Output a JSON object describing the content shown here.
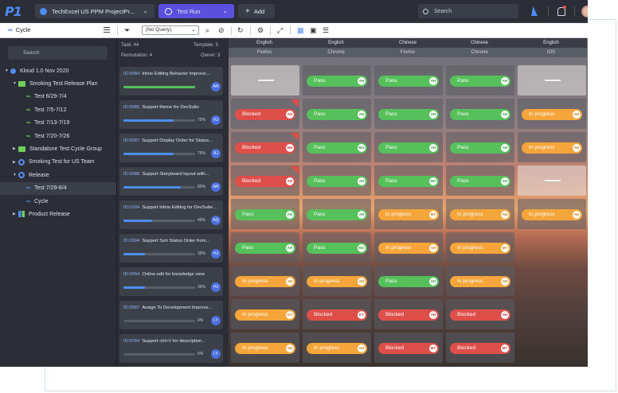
{
  "topbar": {
    "logo": "P1",
    "project": "TechExcel US PPM ProjectPr...",
    "active_tab": "Test Run",
    "add_label": "Add",
    "search_placeholder": "Search"
  },
  "toolbar": {
    "title": "Cycle",
    "query_value": "(No Query)"
  },
  "sidebar": {
    "search_placeholder": "Search",
    "items": [
      {
        "label": "Kloud 1.0 Nov 2020",
        "level": 0,
        "icon": "kloud-icon",
        "caret": "▼"
      },
      {
        "label": "Smoking Test Release Plan",
        "level": 1,
        "icon": "folder-icon",
        "caret": "▼"
      },
      {
        "label": "Test 6/29-7/4",
        "level": 2,
        "icon": "cycle-link-icon",
        "caret": ""
      },
      {
        "label": "Test 7/5-7/12",
        "level": 2,
        "icon": "cycle-link-icon",
        "caret": ""
      },
      {
        "label": "Test 7/13-7/19",
        "level": 2,
        "icon": "cycle-link-icon",
        "caret": ""
      },
      {
        "label": "Test 7/20-7/26",
        "level": 2,
        "icon": "cycle-link-icon",
        "caret": ""
      },
      {
        "label": "Standalone Test Cycle Group",
        "level": 1,
        "icon": "folder-icon",
        "caret": "▶"
      },
      {
        "label": "Smoking Test for US Team",
        "level": 1,
        "icon": "gear-icon",
        "caret": "▶"
      },
      {
        "label": "Release",
        "level": 1,
        "icon": "gear-icon",
        "caret": "▼"
      },
      {
        "label": "Test 7/29-8/4",
        "level": 2,
        "icon": "cycle-link-blue-icon",
        "caret": "",
        "selected": true
      },
      {
        "label": "Cycle",
        "level": 2,
        "icon": "cycle-link-blue-icon",
        "caret": ""
      },
      {
        "label": "Product Release",
        "level": 1,
        "icon": "grid-icon",
        "caret": "▶"
      }
    ]
  },
  "stats": {
    "task_label": "Task:",
    "task_value": "44",
    "template_label": "Template:",
    "template_value": "5",
    "permutation_label": "Permutation:",
    "permutation_value": "4",
    "owner_label": "Owner:",
    "owner_value": "3"
  },
  "cases": [
    {
      "id": "ID:0084",
      "title": "Inline Editing Behavior Improve...",
      "progress": 100,
      "pct": "",
      "owner": "AH",
      "bar_color": "#56c05a"
    },
    {
      "id": "ID:0085",
      "title": "Support theme for DevSuite",
      "progress": 70,
      "pct": "70%",
      "owner": "HJ",
      "bar_color": "#4c8df6"
    },
    {
      "id": "ID:0087",
      "title": "Support Display Order for Status...",
      "progress": 70,
      "pct": "70%",
      "owner": "BJ",
      "bar_color": "#4c8df6"
    },
    {
      "id": "ID:0088",
      "title": "Support Storyboard layout with...",
      "progress": 80,
      "pct": "80%",
      "owner": "AH",
      "bar_color": "#4c8df6"
    },
    {
      "id": "ID:0184",
      "title": "Support Inline Editing for DevSuite...",
      "progress": 40,
      "pct": "40%",
      "owner": "AQ",
      "bar_color": "#4c8df6"
    },
    {
      "id": "ID:0304",
      "title": "Support  Sort Status Order from...",
      "progress": 30,
      "pct": "30%",
      "owner": "HJ",
      "bar_color": "#4c8df6"
    },
    {
      "id": "ID:0004",
      "title": "Online edit for knowledge view",
      "progress": 30,
      "pct": "30%",
      "owner": "HJ",
      "bar_color": "#4c8df6"
    },
    {
      "id": "ID:0587",
      "title": "Assign To Development Improve...",
      "progress": 0,
      "pct": "0%",
      "owner": "LY",
      "bar_color": "#4c8df6"
    },
    {
      "id": "ID:0784",
      "title": "Support ctrl+V for description...",
      "progress": 0,
      "pct": "0%",
      "owner": "LY",
      "bar_color": "#4c8df6"
    }
  ],
  "columns": [
    {
      "lang": "English",
      "browser": "Firefox"
    },
    {
      "lang": "English",
      "browser": "Chrome"
    },
    {
      "lang": "Chinese",
      "browser": "Firefox"
    },
    {
      "lang": "Chinese",
      "browser": "Chrome"
    },
    {
      "lang": "English",
      "browser": "IOS"
    }
  ],
  "grid": [
    [
      {
        "s": "none"
      },
      {
        "s": "pass",
        "label": "Pass",
        "who": "AH"
      },
      {
        "s": "pass",
        "label": "Pass",
        "who": "AH"
      },
      {
        "s": "pass",
        "label": "Pass",
        "who": "AH"
      },
      {
        "s": "none"
      }
    ],
    [
      {
        "s": "blocked",
        "label": "Blocked",
        "who": "AH",
        "flag": true
      },
      {
        "s": "pass",
        "label": "Pass",
        "who": "AH"
      },
      {
        "s": "pass",
        "label": "Pass",
        "who": "AH"
      },
      {
        "s": "pass",
        "label": "Pass",
        "who": "AH"
      },
      {
        "s": "progress",
        "label": "In progress",
        "who": "AH"
      }
    ],
    [
      {
        "s": "blocked",
        "label": "Blocked",
        "who": "MG",
        "flag": true
      },
      {
        "s": "pass",
        "label": "Pass",
        "who": "MG"
      },
      {
        "s": "pass",
        "label": "Pass",
        "who": "AH"
      },
      {
        "s": "pass",
        "label": "Pass",
        "who": "AH"
      },
      {
        "s": "progress",
        "label": "In progress",
        "who": "AH"
      }
    ],
    [
      {
        "s": "blocked",
        "label": "Blocked",
        "who": "AH",
        "flag": true
      },
      {
        "s": "pass",
        "label": "Pass",
        "who": "AH"
      },
      {
        "s": "pass",
        "label": "Pass",
        "who": "MG"
      },
      {
        "s": "pass",
        "label": "Pass",
        "who": "AH"
      },
      {
        "s": "none"
      }
    ],
    [
      {
        "s": "pass",
        "label": "Pass",
        "who": "AH"
      },
      {
        "s": "pass",
        "label": "Pass",
        "who": "AH"
      },
      {
        "s": "progress",
        "label": "In progress",
        "who": "MY"
      },
      {
        "s": "progress",
        "label": "In progress",
        "who": "AH"
      },
      {
        "s": "progress",
        "label": "In progress",
        "who": "AH"
      }
    ],
    [
      {
        "s": "pass",
        "label": "Pass",
        "who": "AH"
      },
      {
        "s": "pass",
        "label": "Pass",
        "who": "MG"
      },
      {
        "s": "progress",
        "label": "In progress",
        "who": "AH"
      },
      {
        "s": "progress",
        "label": "In progress",
        "who": "MY"
      },
      {
        "s": "empty"
      }
    ],
    [
      {
        "s": "progress",
        "label": "In progress",
        "who": "AH"
      },
      {
        "s": "progress",
        "label": "In progress",
        "who": "AH"
      },
      {
        "s": "pass",
        "label": "Pass",
        "who": "AH"
      },
      {
        "s": "progress",
        "label": "In progress",
        "who": "AH"
      },
      {
        "s": "empty"
      }
    ],
    [
      {
        "s": "progress",
        "label": "In progress",
        "who": "KY"
      },
      {
        "s": "blocked",
        "label": "Blocked",
        "who": "KY"
      },
      {
        "s": "blocked",
        "label": "Blocked",
        "who": "AH"
      },
      {
        "s": "blocked",
        "label": "Blocked",
        "who": "AH"
      },
      {
        "s": "empty"
      }
    ],
    [
      {
        "s": "progress",
        "label": "In progress",
        "who": "AH"
      },
      {
        "s": "progress",
        "label": "In progress",
        "who": "AH"
      },
      {
        "s": "blocked",
        "label": "Blocked",
        "who": "MY"
      },
      {
        "s": "blocked",
        "label": "Blocked",
        "who": "MY"
      },
      {
        "s": "empty"
      }
    ]
  ]
}
